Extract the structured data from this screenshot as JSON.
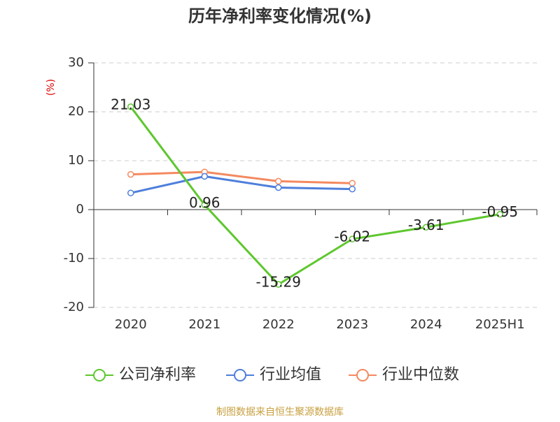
{
  "chart_data": {
    "type": "line",
    "title": "历年净利率变化情况(%)",
    "y_label": "(%)",
    "source": "制图数据来自恒生聚源数据库",
    "categories": [
      "2020",
      "2021",
      "2022",
      "2023",
      "2024",
      "2025H1"
    ],
    "ylim": [
      -20,
      30
    ],
    "yticks": [
      -20,
      -10,
      0,
      10,
      20,
      30
    ],
    "grid": true,
    "series": [
      {
        "name": "公司净利率",
        "color": "#5ec72e",
        "values": [
          21.03,
          0.96,
          -15.29,
          -6.02,
          -3.61,
          -0.95
        ]
      },
      {
        "name": "行业均值",
        "color": "#4e7fdb",
        "values": [
          3.4,
          6.8,
          4.5,
          4.2,
          null,
          null
        ]
      },
      {
        "name": "行业中位数",
        "color": "#f4895f",
        "values": [
          7.2,
          7.7,
          5.8,
          5.4,
          null,
          null
        ]
      }
    ]
  }
}
